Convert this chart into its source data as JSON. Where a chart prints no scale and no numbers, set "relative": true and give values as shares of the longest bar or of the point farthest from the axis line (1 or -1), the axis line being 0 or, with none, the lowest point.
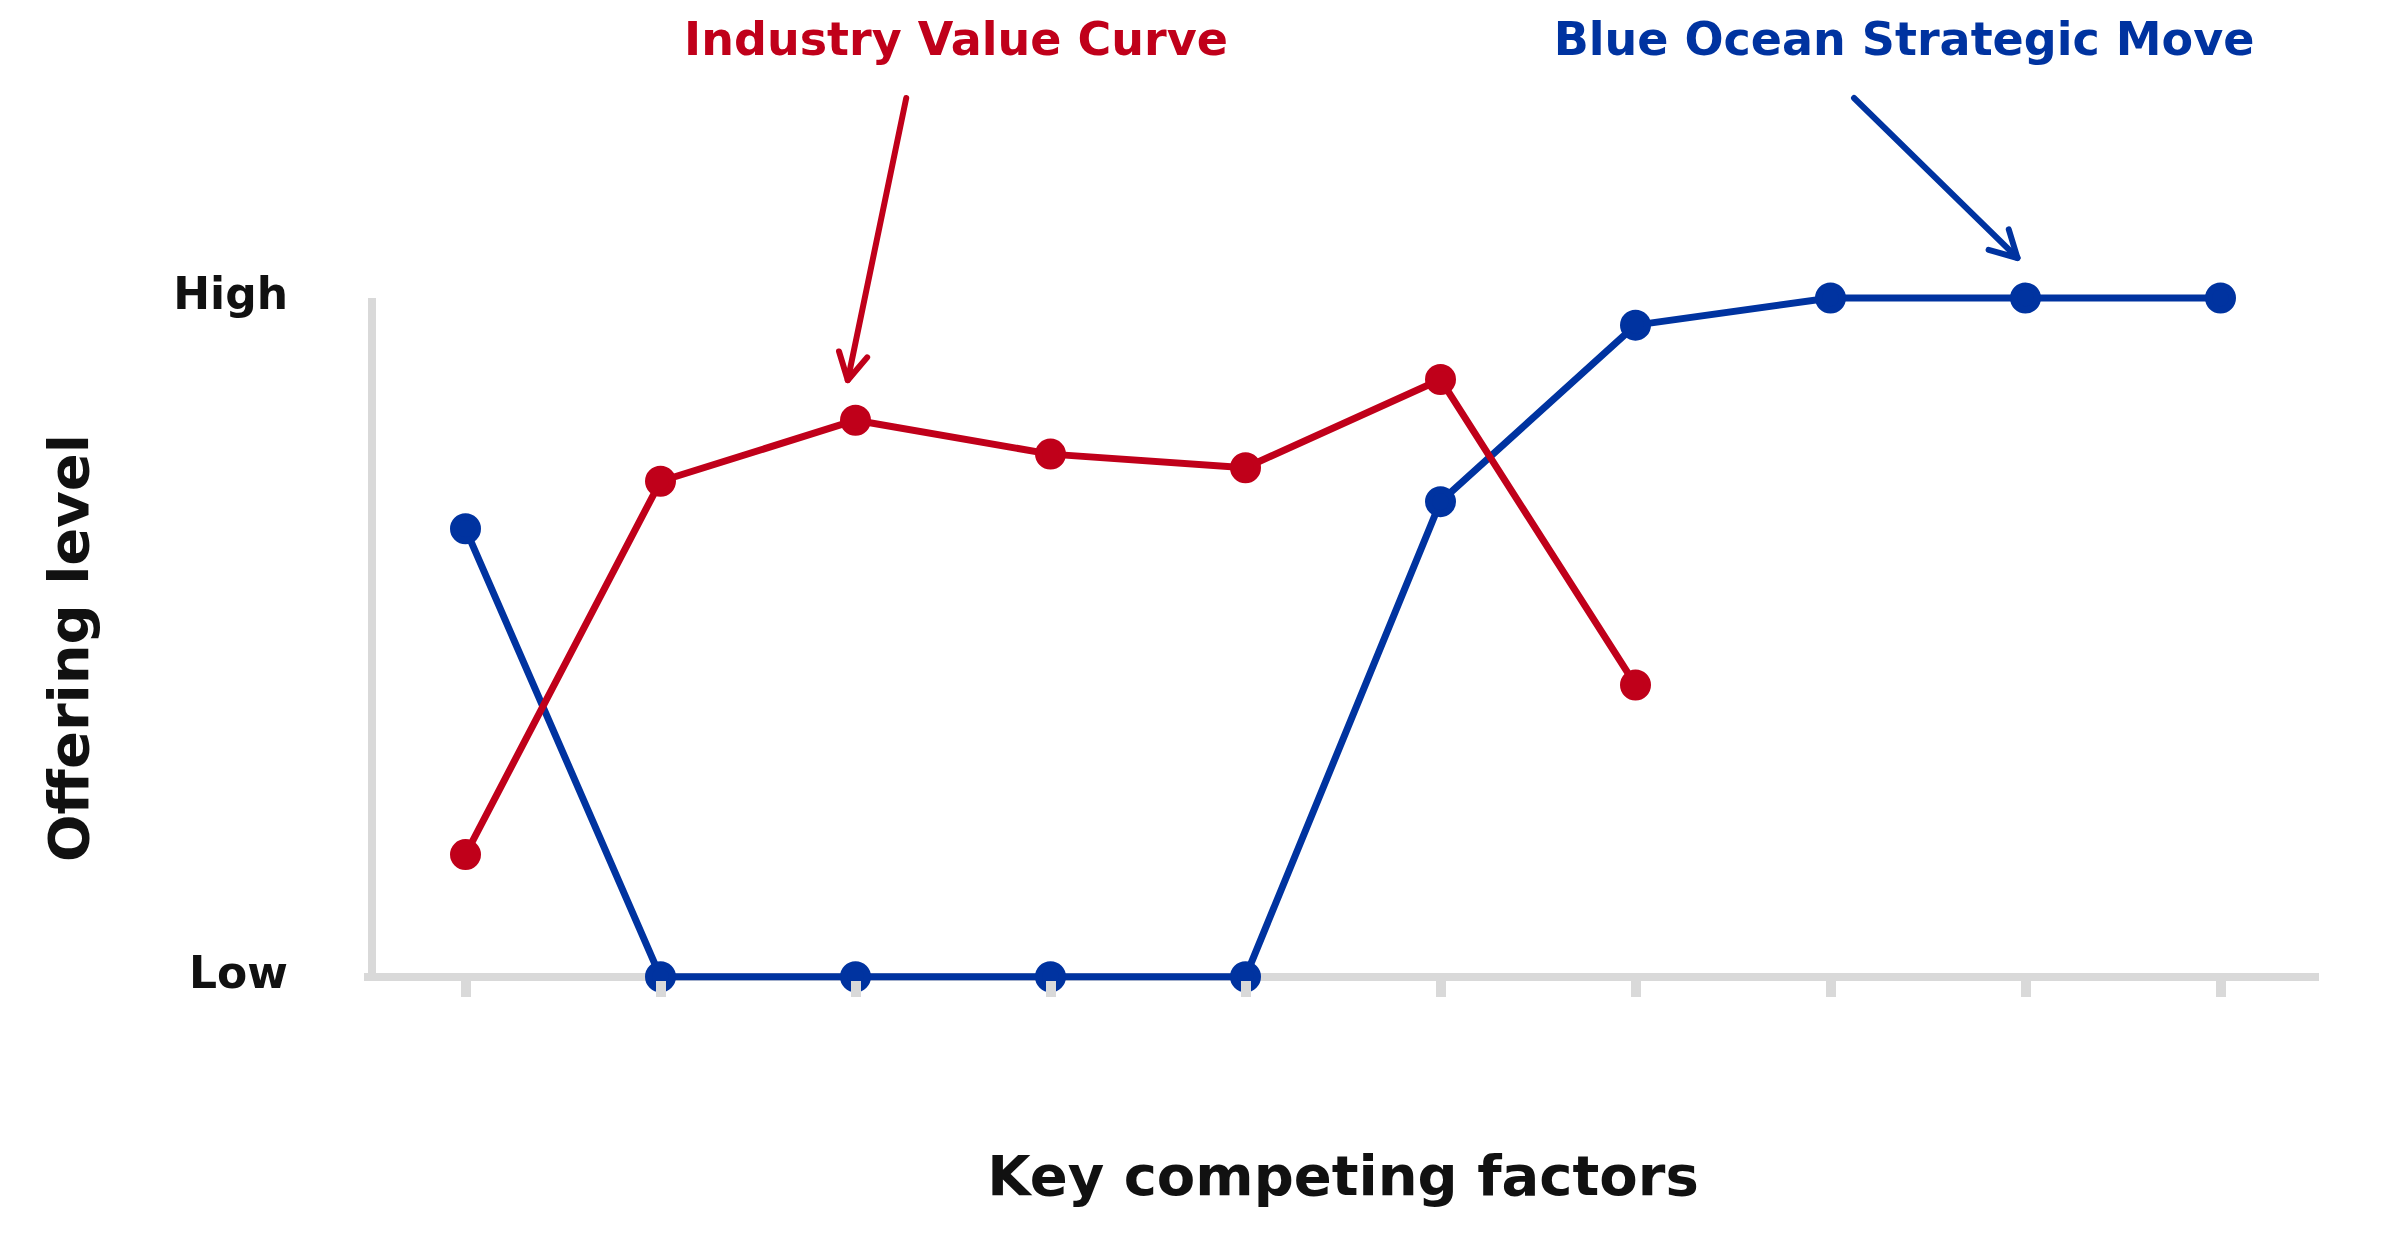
{
  "chart_data": {
    "type": "line",
    "xlabel": "Key competing factors",
    "ylabel": "Offering level",
    "categories": [
      null,
      null,
      null,
      null,
      null,
      null,
      null,
      null,
      null,
      null
    ],
    "relative": true,
    "annotations": [
      "High",
      "Low"
    ],
    "series": [
      {
        "name": "Industry Value Curve",
        "color": "#c0001a",
        "values": [
          0.18,
          0.73,
          0.82,
          0.77,
          0.75,
          0.88,
          0.43,
          null,
          null,
          null
        ]
      },
      {
        "name": "Blue Ocean Strategic Move",
        "color": "#0033a0",
        "values": [
          0.66,
          0,
          0,
          0,
          0,
          0.7,
          0.96,
          1,
          1,
          1
        ]
      }
    ],
    "marker": "circle",
    "line_style": "solid",
    "grid": false,
    "legend": false
  }
}
